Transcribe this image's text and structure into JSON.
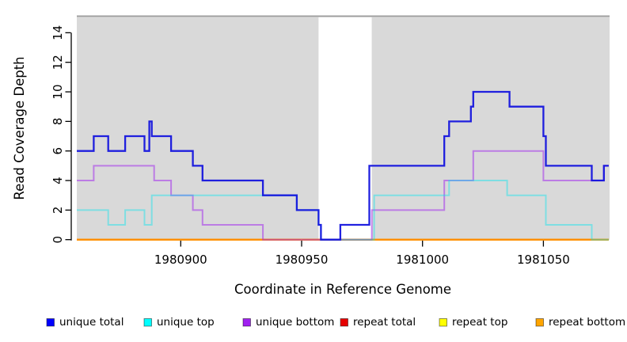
{
  "chart_data": {
    "type": "line",
    "subtype": "step-coverage-plot",
    "xlabel": "Coordinate in Reference Genome",
    "ylabel": "Read Coverage Depth",
    "xlim": [
      1980857,
      1981077
    ],
    "ylim": [
      0,
      15
    ],
    "x_ticks": [
      1980900,
      1980950,
      1981000,
      1981050
    ],
    "x_tick_labels": [
      "1980900",
      "1980950",
      "1981000",
      "1981050"
    ],
    "y_ticks": [
      0,
      2,
      4,
      6,
      8,
      10,
      12,
      14
    ],
    "y_tick_labels": [
      "0",
      "2",
      "4",
      "6",
      "8",
      "10",
      "12",
      "14"
    ],
    "grid": "off",
    "legend_position": "bottom",
    "plot_background": "#d9d9d9",
    "page_background": "#ffffff",
    "gap_region": {
      "x_start": 1980957,
      "x_end": 1980979,
      "color": "#ffffff"
    },
    "x_end": 1981077,
    "series": [
      {
        "name": "unique-total",
        "label": "unique total",
        "color": "#0000ff",
        "stroke": "rgba(16,16,222,0.93)",
        "width": 2.3,
        "draw": 6,
        "steps": [
          [
            1980857,
            6
          ],
          [
            1980864,
            7
          ],
          [
            1980870,
            6
          ],
          [
            1980877,
            7
          ],
          [
            1980885,
            6
          ],
          [
            1980887,
            8
          ],
          [
            1980888,
            7
          ],
          [
            1980896,
            6
          ],
          [
            1980905,
            5
          ],
          [
            1980909,
            4
          ],
          [
            1980934,
            3
          ],
          [
            1980948,
            2
          ],
          [
            1980957,
            1
          ],
          [
            1980958,
            0
          ],
          [
            1980966,
            1
          ],
          [
            1980978,
            5
          ],
          [
            1981009,
            7
          ],
          [
            1981011,
            8
          ],
          [
            1981020,
            9
          ],
          [
            1981021,
            10
          ],
          [
            1981036,
            9
          ],
          [
            1981050,
            7
          ],
          [
            1981051,
            5
          ],
          [
            1981070,
            4
          ],
          [
            1981075,
            5
          ]
        ]
      },
      {
        "name": "unique-top",
        "label": "unique top",
        "color": "#00ffff",
        "stroke": "rgba(0,229,238,0.42)",
        "width": 2,
        "draw": 5,
        "steps": [
          [
            1980857,
            2
          ],
          [
            1980870,
            1
          ],
          [
            1980877,
            2
          ],
          [
            1980885,
            1
          ],
          [
            1980888,
            3
          ],
          [
            1980948,
            2
          ],
          [
            1980957,
            1
          ],
          [
            1980958,
            0
          ],
          [
            1980980,
            3
          ],
          [
            1981011,
            4
          ],
          [
            1981035,
            3
          ],
          [
            1981051,
            1
          ],
          [
            1981070,
            0
          ]
        ]
      },
      {
        "name": "unique-bottom",
        "label": "unique bottom",
        "color": "#a020f0",
        "stroke": "rgba(160,32,240,0.5)",
        "width": 2,
        "draw": 4,
        "steps": [
          [
            1980857,
            4
          ],
          [
            1980864,
            5
          ],
          [
            1980889,
            4
          ],
          [
            1980896,
            3
          ],
          [
            1980905,
            2
          ],
          [
            1980909,
            1
          ],
          [
            1980934,
            0
          ],
          [
            1980979,
            2
          ],
          [
            1981009,
            4
          ],
          [
            1981021,
            6
          ],
          [
            1981050,
            4
          ],
          [
            1981075,
            5
          ]
        ]
      },
      {
        "name": "repeat-total",
        "label": "repeat total",
        "color": "#e60000",
        "stroke": "rgba(230,0,0,1)",
        "width": 2,
        "draw": 1,
        "steps": [
          [
            1980857,
            0
          ]
        ]
      },
      {
        "name": "repeat-top",
        "label": "repeat top",
        "color": "#ffff00",
        "stroke": "rgba(255,255,0,1)",
        "width": 2,
        "draw": 2,
        "steps": [
          [
            1980857,
            0
          ]
        ]
      },
      {
        "name": "repeat-bottom",
        "label": "repeat bottom",
        "color": "#ffa500",
        "stroke": "rgba(255,140,0,1)",
        "width": 2.2,
        "draw": 3,
        "steps": [
          [
            1980857,
            0
          ]
        ]
      }
    ]
  }
}
